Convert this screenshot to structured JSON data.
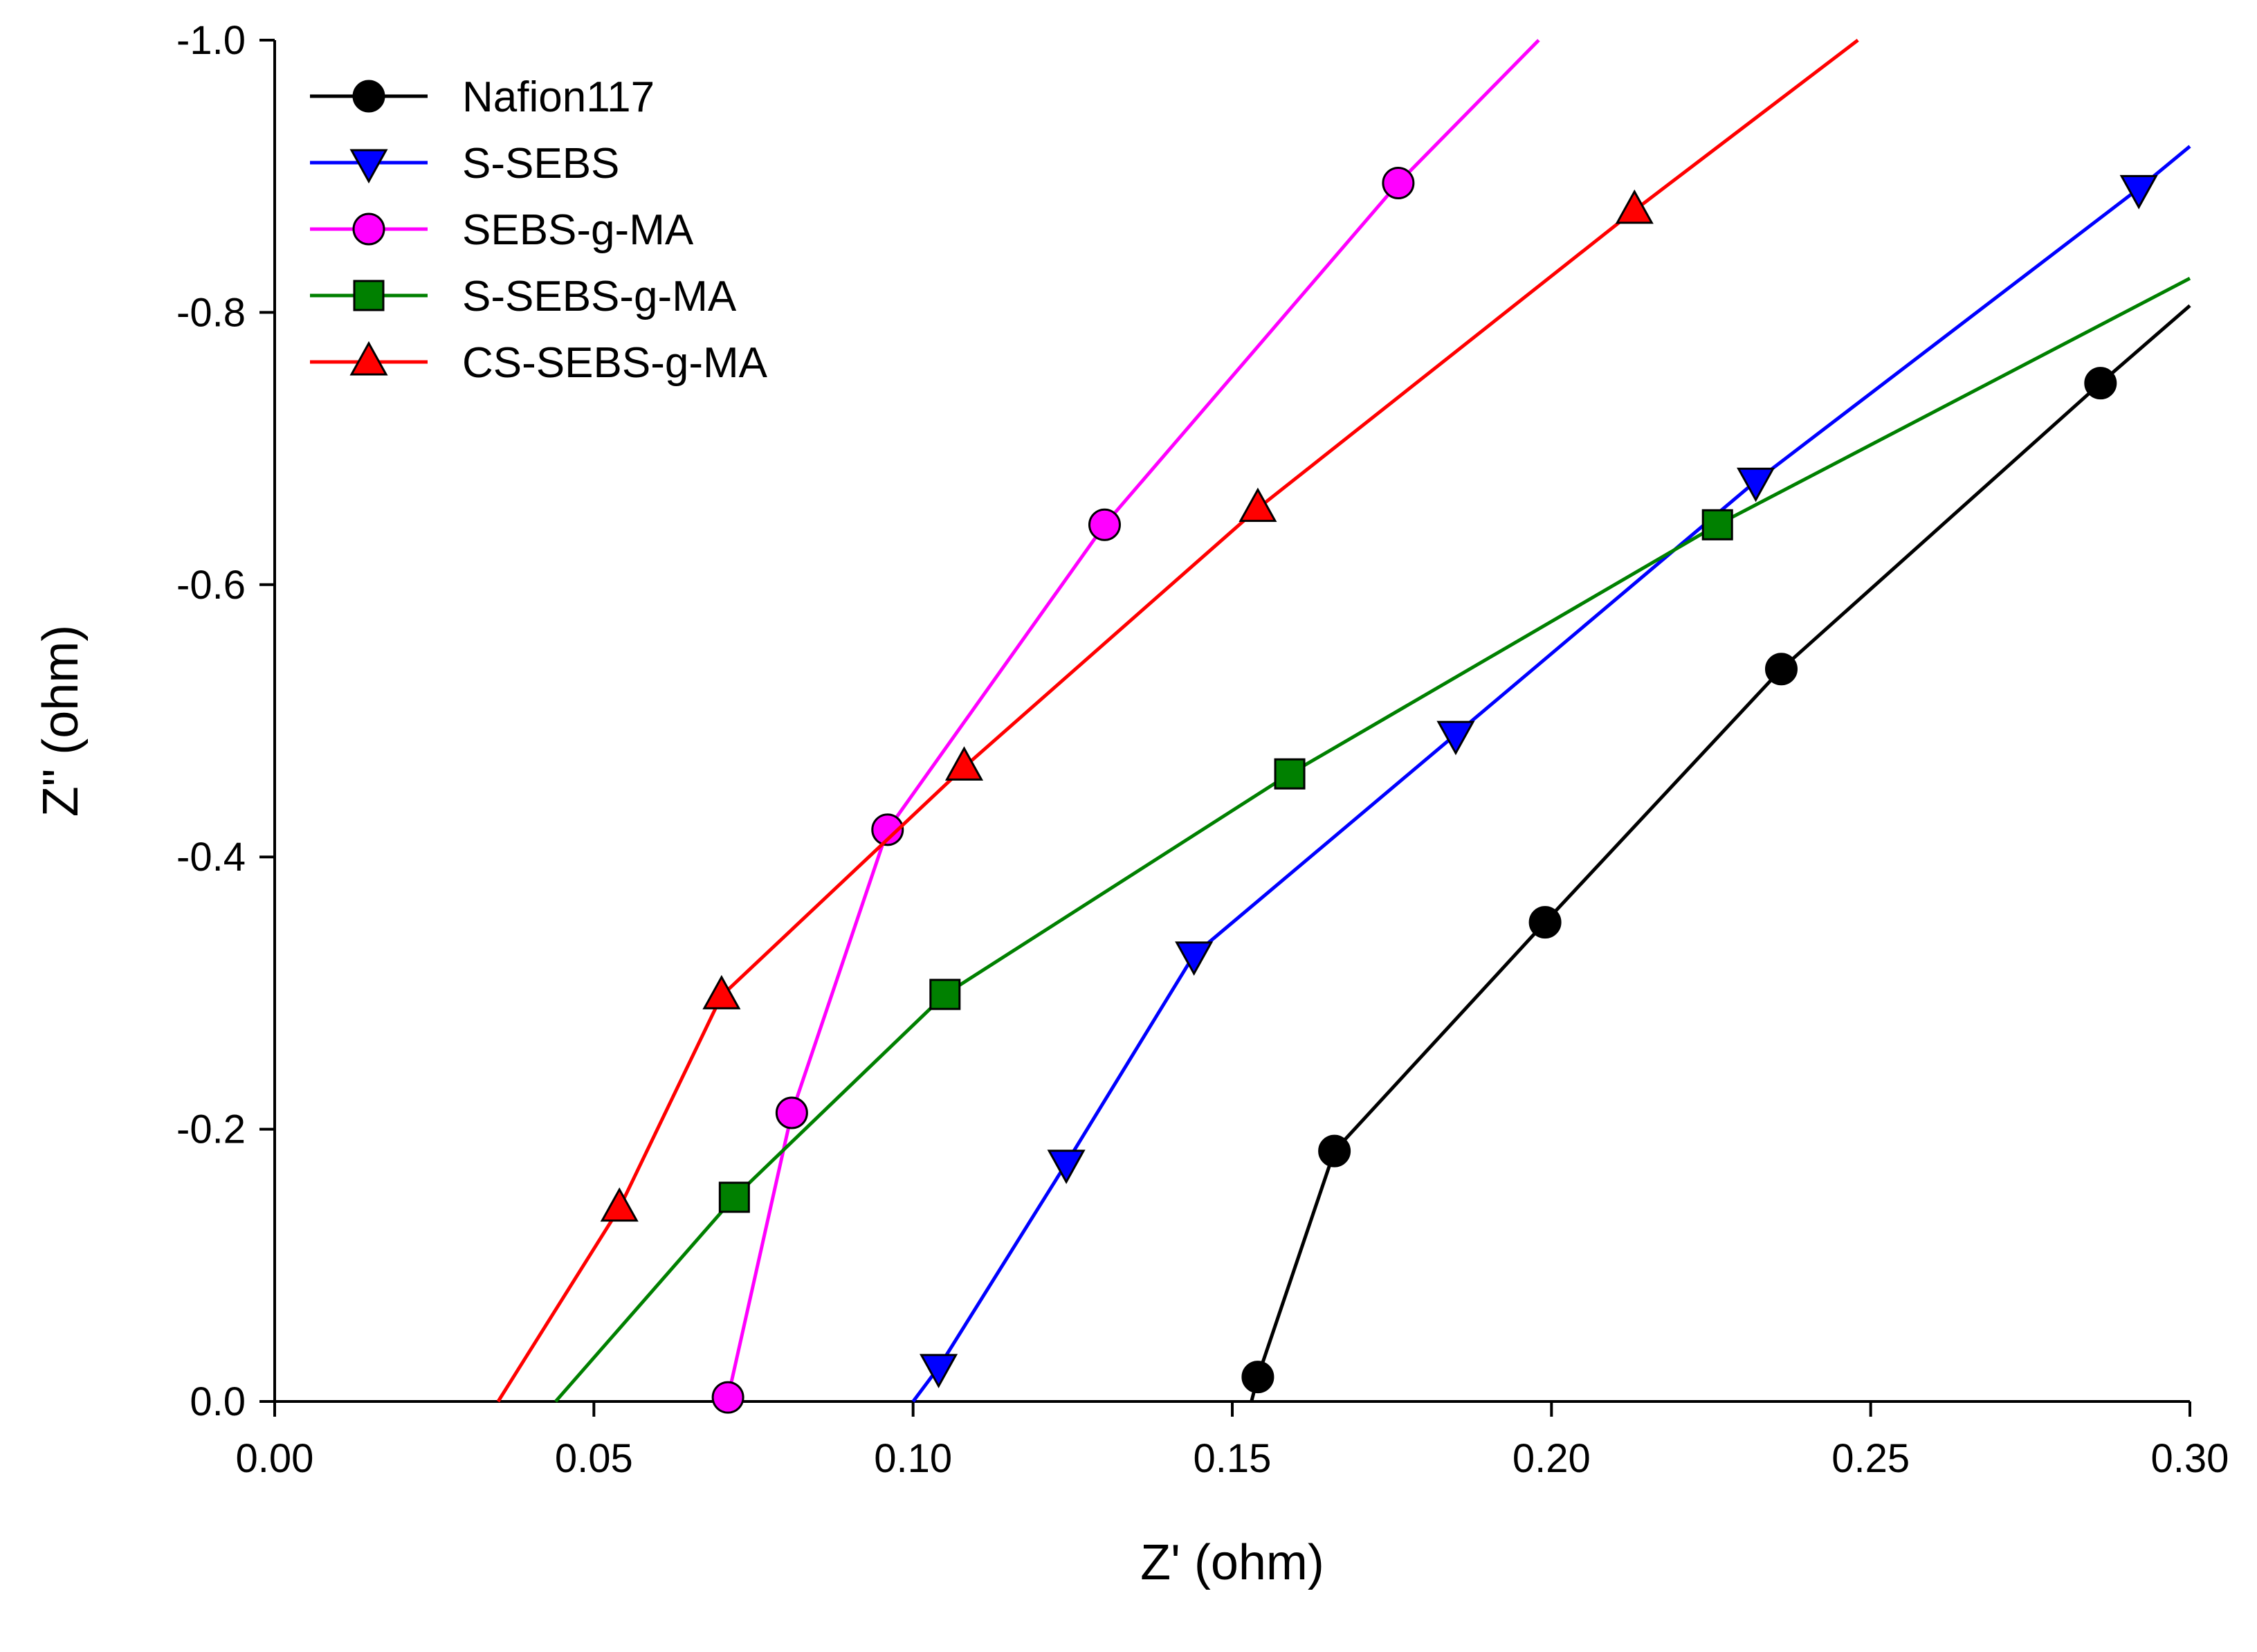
{
  "chart_data": {
    "type": "line",
    "title": "",
    "xlabel": "Z' (ohm)",
    "ylabel": "Z\" (ohm)",
    "xlim": [
      0.0,
      0.3
    ],
    "ylim": [
      0.0,
      -1.0
    ],
    "y_axis_inverted": true,
    "xticks": [
      0.0,
      0.05,
      0.1,
      0.15,
      0.2,
      0.25,
      0.3
    ],
    "xtick_labels": [
      "0.00",
      "0.05",
      "0.10",
      "0.15",
      "0.20",
      "0.25",
      "0.30"
    ],
    "yticks": [
      0.0,
      -0.2,
      -0.4,
      -0.6,
      -0.8,
      -1.0
    ],
    "ytick_labels": [
      "0.0",
      "-0.2",
      "-0.4",
      "-0.6",
      "-0.8",
      "-1.0"
    ],
    "grid": false,
    "legend_position": "top-left",
    "series": [
      {
        "name": "Nafion117",
        "color": "#000000",
        "marker": "circle",
        "line_start": [
          0.153,
          0.0
        ],
        "line_end": [
          0.3,
          -0.805
        ],
        "x": [
          0.154,
          0.166,
          0.199,
          0.236,
          0.286
        ],
        "y": [
          -0.018,
          -0.184,
          -0.352,
          -0.538,
          -0.748
        ]
      },
      {
        "name": "S-SEBS",
        "color": "#0000FF",
        "marker": "triangle-down",
        "line_start": [
          0.1,
          0.0
        ],
        "line_end": [
          0.3,
          -0.922
        ],
        "x": [
          0.104,
          0.124,
          0.144,
          0.185,
          0.232,
          0.292
        ],
        "y": [
          -0.025,
          -0.175,
          -0.328,
          -0.49,
          -0.676,
          -0.891
        ]
      },
      {
        "name": "SEBS-g-MA",
        "color": "#FF00FF",
        "marker": "circle",
        "line_start": [
          0.07,
          0.0
        ],
        "line_end": [
          0.198,
          -1.0
        ],
        "x": [
          0.071,
          0.081,
          0.096,
          0.13,
          0.176
        ],
        "y": [
          -0.003,
          -0.212,
          -0.42,
          -0.644,
          -0.895
        ]
      },
      {
        "name": "S-SEBS-g-MA",
        "color": "#008000",
        "marker": "square",
        "line_start": [
          0.044,
          0.0
        ],
        "line_end": [
          0.3,
          -0.825
        ],
        "x": [
          0.072,
          0.105,
          0.159,
          0.226
        ],
        "y": [
          -0.15,
          -0.299,
          -0.461,
          -0.644
        ]
      },
      {
        "name": "CS-SEBS-g-MA",
        "color": "#FF0000",
        "marker": "triangle-up",
        "line_start": [
          0.035,
          0.0
        ],
        "line_end": [
          0.248,
          -1.0
        ],
        "x": [
          0.054,
          0.07,
          0.108,
          0.154,
          0.213
        ],
        "y": [
          -0.142,
          -0.298,
          -0.466,
          -0.656,
          -0.875
        ]
      }
    ]
  }
}
